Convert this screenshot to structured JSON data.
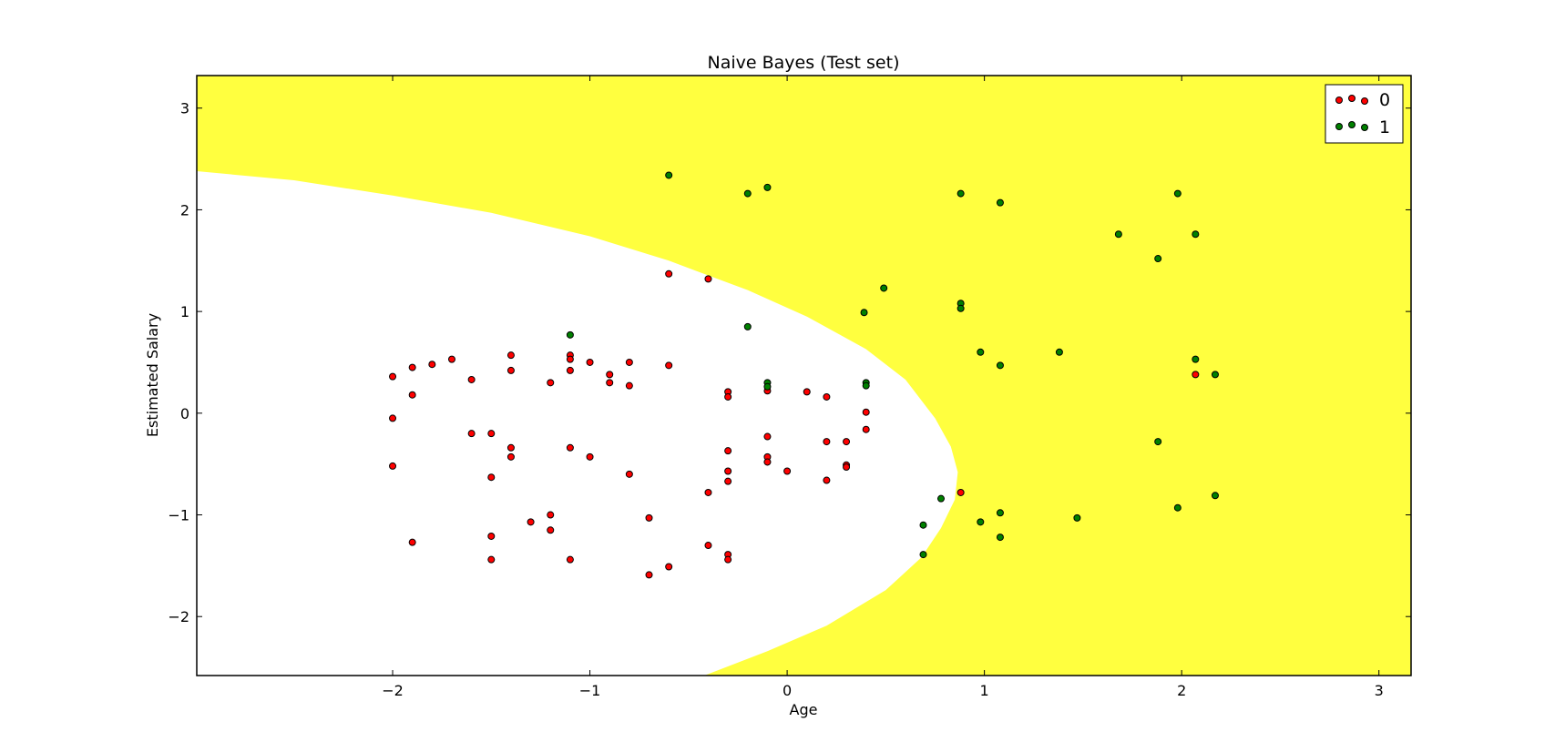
{
  "chart_data": {
    "type": "scatter",
    "title": "Naive Bayes (Test set)",
    "xlabel": "Age",
    "ylabel": "Estimated Salary",
    "xlim": [
      -2.993,
      3.163
    ],
    "ylim": [
      -2.58,
      3.32
    ],
    "xticks": [
      -2,
      -1,
      0,
      1,
      2,
      3
    ],
    "yticks": [
      -2,
      -1,
      0,
      1,
      2,
      3
    ],
    "xtick_labels": [
      "−2",
      "−1",
      "0",
      "1",
      "2",
      "3"
    ],
    "ytick_labels": [
      "−2",
      "−1",
      "0",
      "1",
      "2",
      "3"
    ],
    "grid": false,
    "legend_position": "top-right",
    "decision_region": {
      "class_1_color": "#ffff3f",
      "class_0_color": "#ffffff",
      "boundary": [
        [
          -2.993,
          2.38
        ],
        [
          -2.5,
          2.29
        ],
        [
          -2.0,
          2.14
        ],
        [
          -1.5,
          1.97
        ],
        [
          -1.0,
          1.74
        ],
        [
          -0.6,
          1.5
        ],
        [
          -0.2,
          1.21
        ],
        [
          0.1,
          0.95
        ],
        [
          0.4,
          0.63
        ],
        [
          0.6,
          0.33
        ],
        [
          0.75,
          -0.05
        ],
        [
          0.83,
          -0.33
        ],
        [
          0.865,
          -0.58
        ],
        [
          0.85,
          -0.85
        ],
        [
          0.78,
          -1.13
        ],
        [
          0.68,
          -1.42
        ],
        [
          0.5,
          -1.74
        ],
        [
          0.2,
          -2.09
        ],
        [
          -0.1,
          -2.34
        ],
        [
          -0.42,
          -2.58
        ]
      ]
    },
    "series": [
      {
        "name": "0",
        "color": "#ff0000",
        "points": [
          [
            -2.0,
            0.36
          ],
          [
            -1.9,
            0.45
          ],
          [
            -1.8,
            0.48
          ],
          [
            -1.7,
            0.53
          ],
          [
            -1.6,
            0.33
          ],
          [
            -1.9,
            0.18
          ],
          [
            -2.0,
            -0.05
          ],
          [
            -2.0,
            -0.52
          ],
          [
            -1.9,
            -1.27
          ],
          [
            -1.6,
            -0.2
          ],
          [
            -1.5,
            -0.2
          ],
          [
            -1.5,
            -0.63
          ],
          [
            -1.4,
            0.57
          ],
          [
            -1.4,
            0.42
          ],
          [
            -1.4,
            -0.34
          ],
          [
            -1.4,
            -0.43
          ],
          [
            -1.5,
            -1.21
          ],
          [
            -1.5,
            -1.44
          ],
          [
            -1.3,
            -1.07
          ],
          [
            -1.2,
            0.3
          ],
          [
            -1.2,
            -1.0
          ],
          [
            -1.2,
            -1.15
          ],
          [
            -1.1,
            0.57
          ],
          [
            -1.1,
            0.53
          ],
          [
            -1.1,
            0.42
          ],
          [
            -1.1,
            -0.34
          ],
          [
            -1.1,
            -1.44
          ],
          [
            -1.0,
            0.5
          ],
          [
            -1.0,
            -0.43
          ],
          [
            -0.9,
            0.38
          ],
          [
            -0.9,
            0.3
          ],
          [
            -0.8,
            0.5
          ],
          [
            -0.8,
            0.27
          ],
          [
            -0.8,
            -0.6
          ],
          [
            -0.7,
            -1.03
          ],
          [
            -0.7,
            -1.59
          ],
          [
            -0.6,
            1.37
          ],
          [
            -0.6,
            0.47
          ],
          [
            -0.6,
            -1.51
          ],
          [
            -0.4,
            1.32
          ],
          [
            -0.4,
            -0.78
          ],
          [
            -0.4,
            -1.3
          ],
          [
            -0.3,
            0.21
          ],
          [
            -0.3,
            0.16
          ],
          [
            -0.3,
            -0.37
          ],
          [
            -0.3,
            -0.57
          ],
          [
            -0.3,
            -0.67
          ],
          [
            -0.3,
            -1.39
          ],
          [
            -0.3,
            -1.44
          ],
          [
            -0.1,
            0.22
          ],
          [
            -0.1,
            -0.23
          ],
          [
            -0.1,
            -0.43
          ],
          [
            -0.1,
            -0.48
          ],
          [
            0.0,
            -0.57
          ],
          [
            0.1,
            0.21
          ],
          [
            0.2,
            0.16
          ],
          [
            0.2,
            -0.28
          ],
          [
            0.2,
            -0.66
          ],
          [
            0.3,
            -0.28
          ],
          [
            0.3,
            -0.51
          ],
          [
            0.3,
            -0.53
          ],
          [
            0.4,
            0.01
          ],
          [
            0.4,
            -0.16
          ],
          [
            0.88,
            -0.78
          ],
          [
            2.07,
            0.38
          ]
        ]
      },
      {
        "name": "1",
        "color": "#008000",
        "points": [
          [
            -0.6,
            2.34
          ],
          [
            -0.2,
            2.16
          ],
          [
            -0.1,
            2.22
          ],
          [
            -0.2,
            0.85
          ],
          [
            -1.1,
            0.77
          ],
          [
            -0.1,
            0.3
          ],
          [
            -0.1,
            0.26
          ],
          [
            0.4,
            0.3
          ],
          [
            0.4,
            0.27
          ],
          [
            0.39,
            0.99
          ],
          [
            0.49,
            1.23
          ],
          [
            0.88,
            1.08
          ],
          [
            0.88,
            1.03
          ],
          [
            0.88,
            2.16
          ],
          [
            1.08,
            2.07
          ],
          [
            0.98,
            0.6
          ],
          [
            1.08,
            0.47
          ],
          [
            1.38,
            0.6
          ],
          [
            1.68,
            1.76
          ],
          [
            1.88,
            1.52
          ],
          [
            1.98,
            2.16
          ],
          [
            2.07,
            1.76
          ],
          [
            2.07,
            0.53
          ],
          [
            2.17,
            0.38
          ],
          [
            1.88,
            -0.28
          ],
          [
            0.78,
            -0.84
          ],
          [
            0.69,
            -1.1
          ],
          [
            0.69,
            -1.39
          ],
          [
            0.98,
            -1.07
          ],
          [
            1.08,
            -0.98
          ],
          [
            1.08,
            -1.22
          ],
          [
            1.47,
            -1.03
          ],
          [
            1.98,
            -0.93
          ],
          [
            2.17,
            -0.81
          ]
        ]
      }
    ]
  }
}
